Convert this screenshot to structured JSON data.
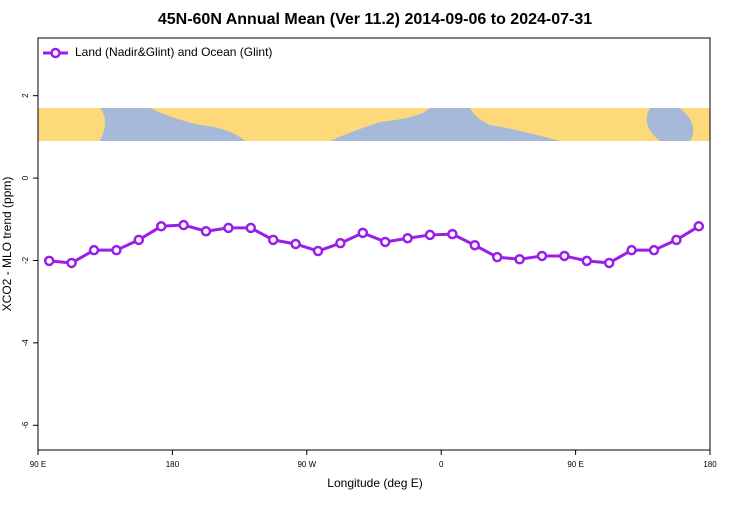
{
  "chart_data": {
    "type": "line",
    "title": "45N-60N Annual Mean (Ver 11.2)   2014-09-06 to 2024-07-31",
    "x_label": "Longitude (deg E)",
    "y_label": "XCO2 - MLO trend (ppm)",
    "x": [
      97.5,
      112.5,
      127.5,
      142.5,
      157.5,
      172.5,
      187.5,
      202.5,
      217.5,
      232.5,
      247.5,
      262.5,
      277.5,
      292.5,
      307.5,
      322.5,
      337.5,
      352.5,
      367.5,
      382.5,
      397.5,
      412.5,
      427.5,
      442.5,
      457.5,
      472.5,
      487.5,
      502.5,
      517.5,
      532.5
    ],
    "series": [
      {
        "name": "Land (Nadir&Glint) and Ocean (Glint)",
        "color": "#9a1ee6",
        "values": [
          -2.01,
          -2.06,
          -1.75,
          -1.75,
          -1.5,
          -1.17,
          -1.14,
          -1.29,
          -1.21,
          -1.21,
          -1.5,
          -1.6,
          -1.77,
          -1.58,
          -1.33,
          -1.55,
          -1.46,
          -1.38,
          -1.36,
          -1.63,
          -1.92,
          -1.97,
          -1.89,
          -1.89,
          -2.01,
          -2.06,
          -1.75,
          -1.75,
          -1.5,
          -1.17
        ]
      }
    ],
    "xlim": [
      90,
      540
    ],
    "xticks": [
      {
        "value": 90,
        "label": "90 E"
      },
      {
        "value": 180,
        "label": "180"
      },
      {
        "value": 270,
        "label": "90 W"
      },
      {
        "value": 360,
        "label": "0"
      },
      {
        "value": 450,
        "label": "90 E"
      },
      {
        "value": 540,
        "label": "180"
      }
    ],
    "ylim": [
      -6.6,
      3.4
    ],
    "yticks": [
      2,
      0,
      -2,
      -4,
      -6
    ],
    "legend": "top-left"
  }
}
